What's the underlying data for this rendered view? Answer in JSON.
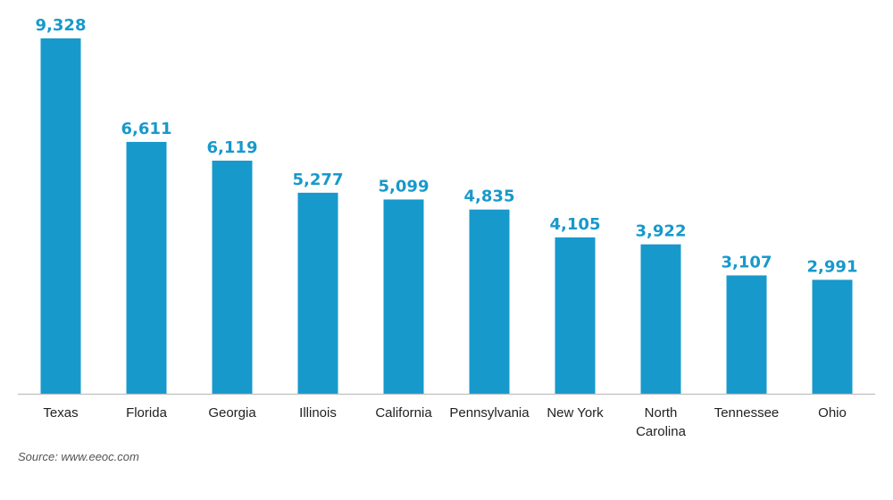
{
  "chart_data": {
    "type": "bar",
    "categories": [
      "Texas",
      "Florida",
      "Georgia",
      "Illinois",
      "California",
      "Pennsylvania",
      "New York",
      "North Carolina",
      "Tennessee",
      "Ohio"
    ],
    "values": [
      9328,
      6611,
      6119,
      5277,
      5099,
      4835,
      4105,
      3922,
      3107,
      2991
    ],
    "value_labels": [
      "9,328",
      "6,611",
      "6,119",
      "5,277",
      "5,099",
      "4,835",
      "4,105",
      "3,922",
      "3,107",
      "2,991"
    ],
    "title": "",
    "xlabel": "",
    "ylabel": "",
    "ylim": [
      0,
      9328
    ],
    "grid": false,
    "bar_color": "#1799cc",
    "label_color": "#1799cc"
  },
  "source": "Source: www.eeoc.com"
}
